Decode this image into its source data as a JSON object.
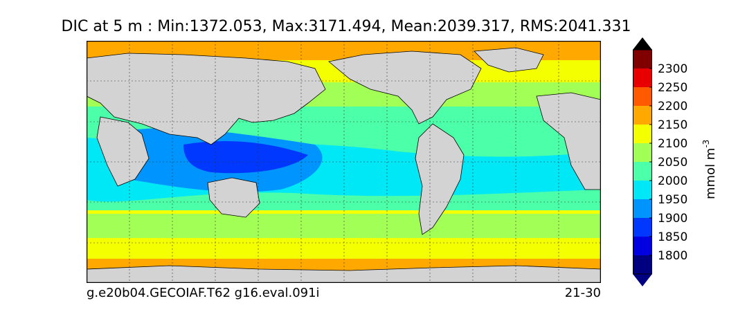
{
  "title": "DIC at 5 m : Min:1372.053, Max:3171.494, Mean:2039.317, RMS:2041.331",
  "footer_left": "g.e20b04.GECOIAF.T62 g16.eval.091i",
  "footer_right": "21-30",
  "colorbar": {
    "units_label": "mmol m",
    "units_exponent": "-3",
    "ticks": [
      "1800",
      "1850",
      "1900",
      "1950",
      "2000",
      "2050",
      "2100",
      "2150",
      "2200",
      "2250",
      "2300"
    ],
    "colors": [
      "#000080",
      "#0000e0",
      "#0038ff",
      "#0094ff",
      "#00e8f5",
      "#4cff a9",
      "#a2ff55",
      "#f4ff00",
      "#ffa800",
      "#ff4800",
      "#e00000",
      "#800000"
    ],
    "band_colors": [
      "#000080",
      "#0000e0",
      "#0038ff",
      "#0094ff",
      "#00e8f5",
      "#4cffa9",
      "#a2ff55",
      "#f4ff00",
      "#ffa800",
      "#ff5a00",
      "#e80000",
      "#800000"
    ]
  },
  "land_color": "#d3d3d3"
}
